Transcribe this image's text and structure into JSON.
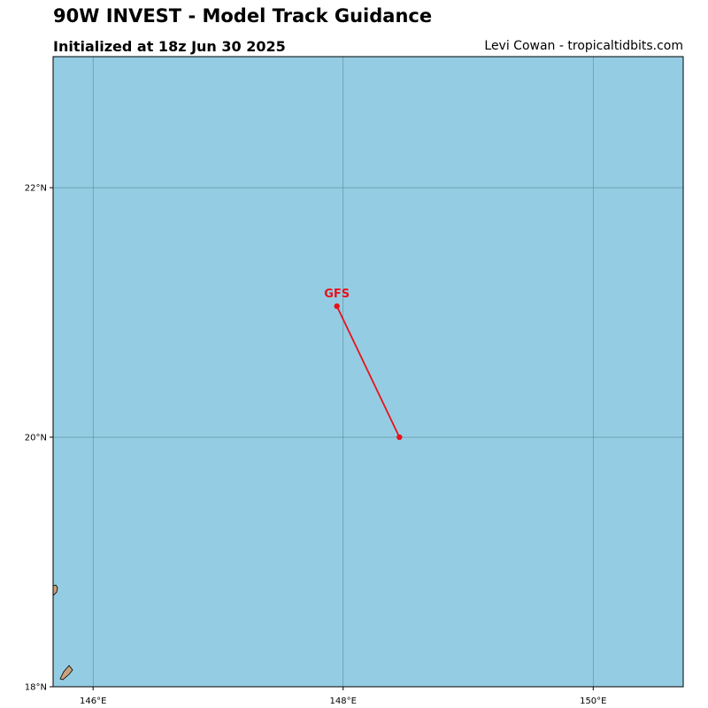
{
  "header": {
    "title": "90W INVEST - Model Track Guidance",
    "subtitle": "Initialized at 18z Jun 30 2025",
    "credit": "Levi Cowan - tropicaltidbits.com"
  },
  "map": {
    "ocean_color": "#94cde3",
    "land_color": "#c8a27a",
    "grid_color": "#5f8795",
    "lon_range": [
      145.68,
      150.72
    ],
    "lat_range": [
      18.0,
      23.05
    ],
    "lon_ticks": [
      146,
      148,
      150
    ],
    "lon_tick_labels": [
      "146°E",
      "148°E",
      "150°E"
    ],
    "lat_ticks": [
      18,
      20,
      22
    ],
    "lat_tick_labels": [
      "18°N",
      "20°N",
      "22°N"
    ]
  },
  "tracks": [
    {
      "model": "GFS",
      "color": "#e8121a",
      "points": [
        {
          "lon": 148.45,
          "lat": 20.0
        },
        {
          "lon": 147.95,
          "lat": 21.05
        }
      ]
    }
  ]
}
